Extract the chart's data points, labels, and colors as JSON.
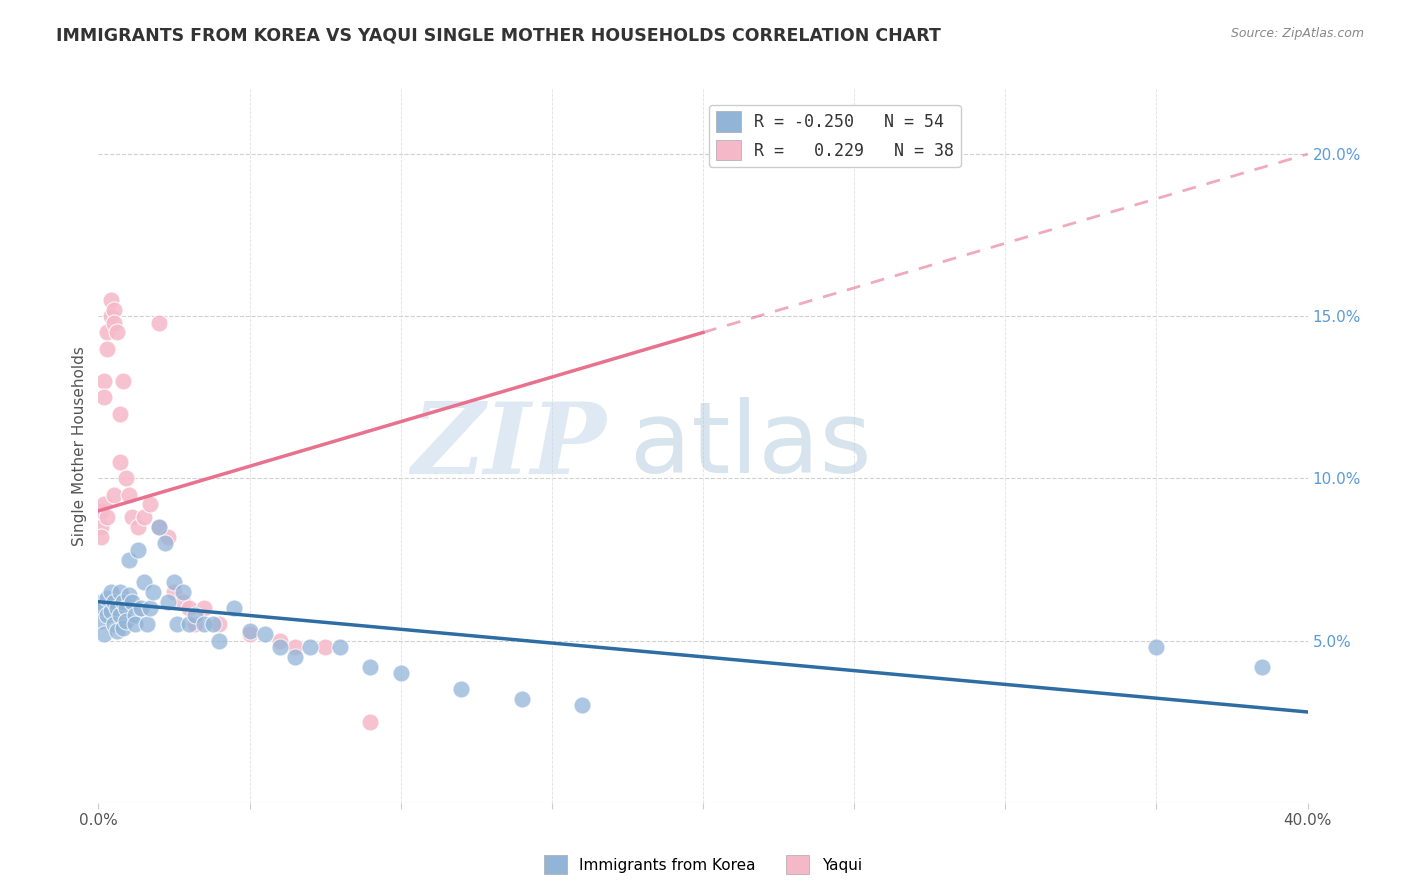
{
  "title": "IMMIGRANTS FROM KOREA VS YAQUI SINGLE MOTHER HOUSEHOLDS CORRELATION CHART",
  "source": "Source: ZipAtlas.com",
  "ylabel": "Single Mother Households",
  "watermark_zip": "ZIP",
  "watermark_atlas": "atlas",
  "series1_name": "Immigrants from Korea",
  "series1_color": "#92b4d7",
  "series1_R": -0.25,
  "series1_N": 54,
  "series1_line_color": "#2e6da4",
  "series2_name": "Yaqui",
  "series2_color": "#f5b8c8",
  "series2_R": 0.229,
  "series2_N": 38,
  "series2_line_color": "#e8728e",
  "xlim": [
    0.0,
    0.4
  ],
  "ylim": [
    0.0,
    0.22
  ],
  "xticks": [
    0.0,
    0.05,
    0.1,
    0.15,
    0.2,
    0.25,
    0.3,
    0.35,
    0.4
  ],
  "yticks_right": [
    0.05,
    0.1,
    0.15,
    0.2
  ],
  "blue_line": [
    [
      0.0,
      0.062
    ],
    [
      0.4,
      0.028
    ]
  ],
  "pink_line_solid": [
    [
      0.0,
      0.09
    ],
    [
      0.2,
      0.145
    ]
  ],
  "pink_line_dashed": [
    [
      0.2,
      0.145
    ],
    [
      0.4,
      0.2
    ]
  ],
  "blue_scatter_x": [
    0.001,
    0.001,
    0.002,
    0.002,
    0.003,
    0.003,
    0.004,
    0.004,
    0.005,
    0.005,
    0.006,
    0.006,
    0.007,
    0.007,
    0.008,
    0.008,
    0.009,
    0.009,
    0.01,
    0.01,
    0.011,
    0.012,
    0.012,
    0.013,
    0.014,
    0.015,
    0.016,
    0.017,
    0.018,
    0.02,
    0.022,
    0.023,
    0.025,
    0.026,
    0.028,
    0.03,
    0.032,
    0.035,
    0.038,
    0.04,
    0.045,
    0.05,
    0.055,
    0.06,
    0.065,
    0.07,
    0.08,
    0.09,
    0.1,
    0.12,
    0.14,
    0.16,
    0.35,
    0.385
  ],
  "blue_scatter_y": [
    0.062,
    0.056,
    0.06,
    0.052,
    0.063,
    0.058,
    0.065,
    0.059,
    0.062,
    0.055,
    0.06,
    0.053,
    0.065,
    0.058,
    0.062,
    0.054,
    0.06,
    0.056,
    0.075,
    0.064,
    0.062,
    0.058,
    0.055,
    0.078,
    0.06,
    0.068,
    0.055,
    0.06,
    0.065,
    0.085,
    0.08,
    0.062,
    0.068,
    0.055,
    0.065,
    0.055,
    0.058,
    0.055,
    0.055,
    0.05,
    0.06,
    0.053,
    0.052,
    0.048,
    0.045,
    0.048,
    0.048,
    0.042,
    0.04,
    0.035,
    0.032,
    0.03,
    0.048,
    0.042
  ],
  "pink_scatter_x": [
    0.001,
    0.001,
    0.001,
    0.002,
    0.002,
    0.002,
    0.003,
    0.003,
    0.003,
    0.004,
    0.004,
    0.005,
    0.005,
    0.005,
    0.006,
    0.007,
    0.007,
    0.008,
    0.009,
    0.01,
    0.011,
    0.013,
    0.015,
    0.017,
    0.02,
    0.023,
    0.025,
    0.028,
    0.03,
    0.032,
    0.04,
    0.05,
    0.06,
    0.065,
    0.075,
    0.09,
    0.02,
    0.035
  ],
  "pink_scatter_y": [
    0.085,
    0.09,
    0.082,
    0.13,
    0.125,
    0.092,
    0.145,
    0.14,
    0.088,
    0.15,
    0.155,
    0.152,
    0.148,
    0.095,
    0.145,
    0.12,
    0.105,
    0.13,
    0.1,
    0.095,
    0.088,
    0.085,
    0.088,
    0.092,
    0.085,
    0.082,
    0.065,
    0.062,
    0.06,
    0.055,
    0.055,
    0.052,
    0.05,
    0.048,
    0.048,
    0.025,
    0.148,
    0.06
  ]
}
